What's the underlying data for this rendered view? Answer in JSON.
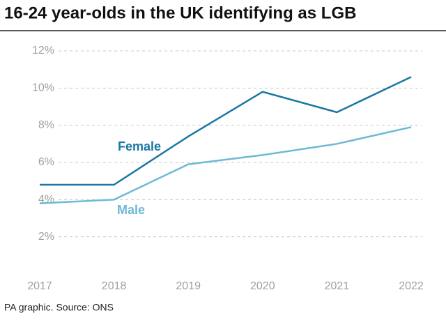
{
  "chart_data": {
    "type": "line",
    "title": "16-24 year-olds in the UK identifying as LGB",
    "source": "PA graphic. Source: ONS",
    "categories": [
      "2017",
      "2018",
      "2019",
      "2020",
      "2021",
      "2022"
    ],
    "series": [
      {
        "name": "Female",
        "color": "#1b77a3",
        "values": [
          4.8,
          4.8,
          7.4,
          9.8,
          8.7,
          10.6
        ]
      },
      {
        "name": "Male",
        "color": "#6db9d6",
        "values": [
          3.8,
          4.0,
          5.9,
          6.4,
          7.0,
          7.9
        ]
      }
    ],
    "ylim": [
      0,
      12
    ],
    "yticks": [
      {
        "value": 2,
        "label": "2%"
      },
      {
        "value": 4,
        "label": "4%"
      },
      {
        "value": 6,
        "label": "6%"
      },
      {
        "value": 8,
        "label": "8%"
      },
      {
        "value": 10,
        "label": "10%"
      },
      {
        "value": 12,
        "label": "12%"
      }
    ],
    "grid": true
  }
}
